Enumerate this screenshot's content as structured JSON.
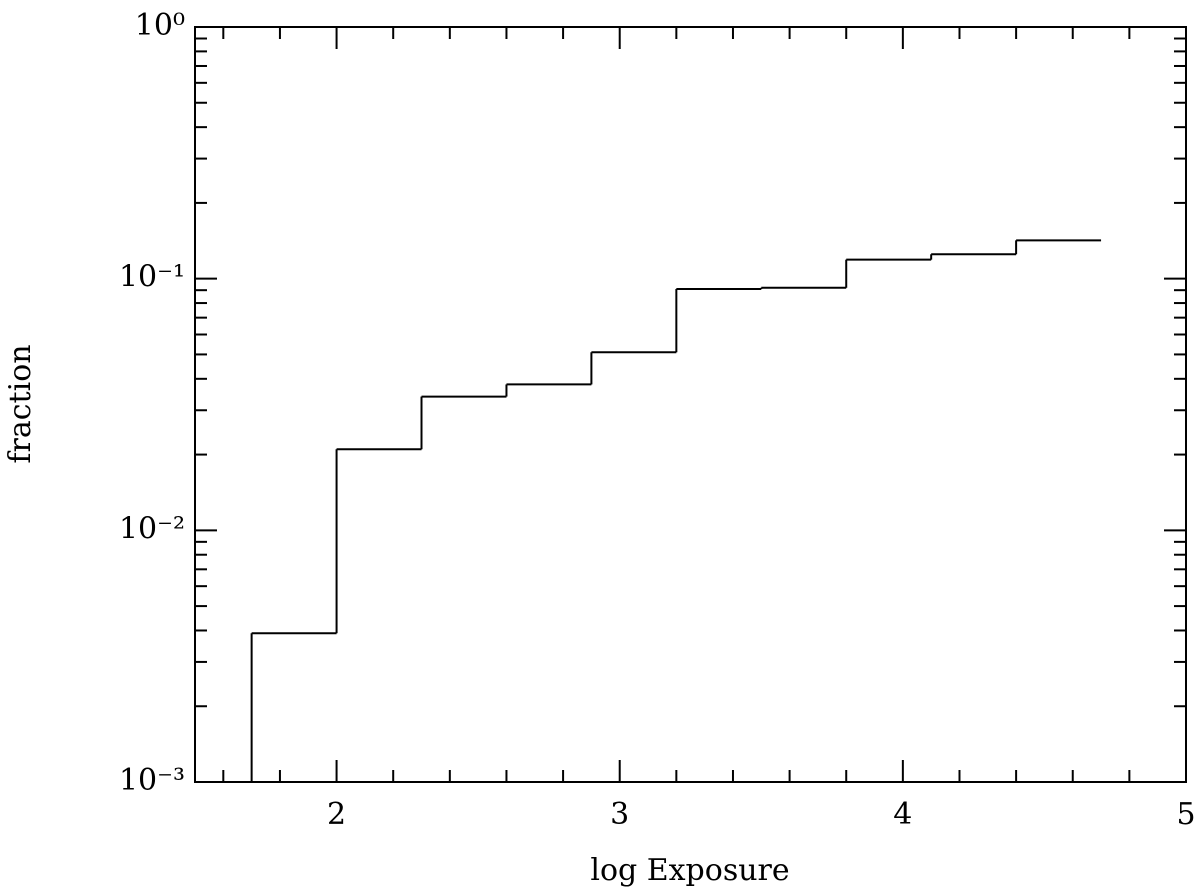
{
  "chart_data": {
    "type": "histogram",
    "xlabel": "log Exposure",
    "ylabel": "fraction",
    "bins": [
      1.7,
      2.0,
      2.3,
      2.6,
      2.9,
      3.2,
      3.5,
      3.8,
      4.1,
      4.4,
      4.7
    ],
    "values": [
      0.0039,
      0.021,
      0.034,
      0.038,
      0.051,
      0.091,
      0.092,
      0.119,
      0.125,
      0.142
    ],
    "color": "#000000",
    "xlim": [
      1.5,
      5
    ],
    "xticks": [
      2,
      3,
      4,
      5
    ],
    "xminorticks": [
      1.6,
      1.8,
      2.2,
      2.4,
      2.6,
      2.8,
      3.2,
      3.4,
      3.6,
      3.8,
      4.2,
      4.4,
      4.6,
      4.8
    ],
    "ylog": true,
    "ylim": [
      0.001,
      1
    ],
    "yticks": [
      {
        "value": 0.001,
        "label": "10⁻³"
      },
      {
        "value": 0.01,
        "label": "10⁻²"
      },
      {
        "value": 0.1,
        "label": "10⁻¹"
      },
      {
        "value": 1,
        "label": "10⁰"
      }
    ],
    "yminorticks": [
      0.002,
      0.003,
      0.004,
      0.005,
      0.006,
      0.007,
      0.008,
      0.009,
      0.02,
      0.03,
      0.04,
      0.05,
      0.06,
      0.07,
      0.08,
      0.09,
      0.2,
      0.3,
      0.4,
      0.5,
      0.6,
      0.7,
      0.8,
      0.9
    ]
  }
}
